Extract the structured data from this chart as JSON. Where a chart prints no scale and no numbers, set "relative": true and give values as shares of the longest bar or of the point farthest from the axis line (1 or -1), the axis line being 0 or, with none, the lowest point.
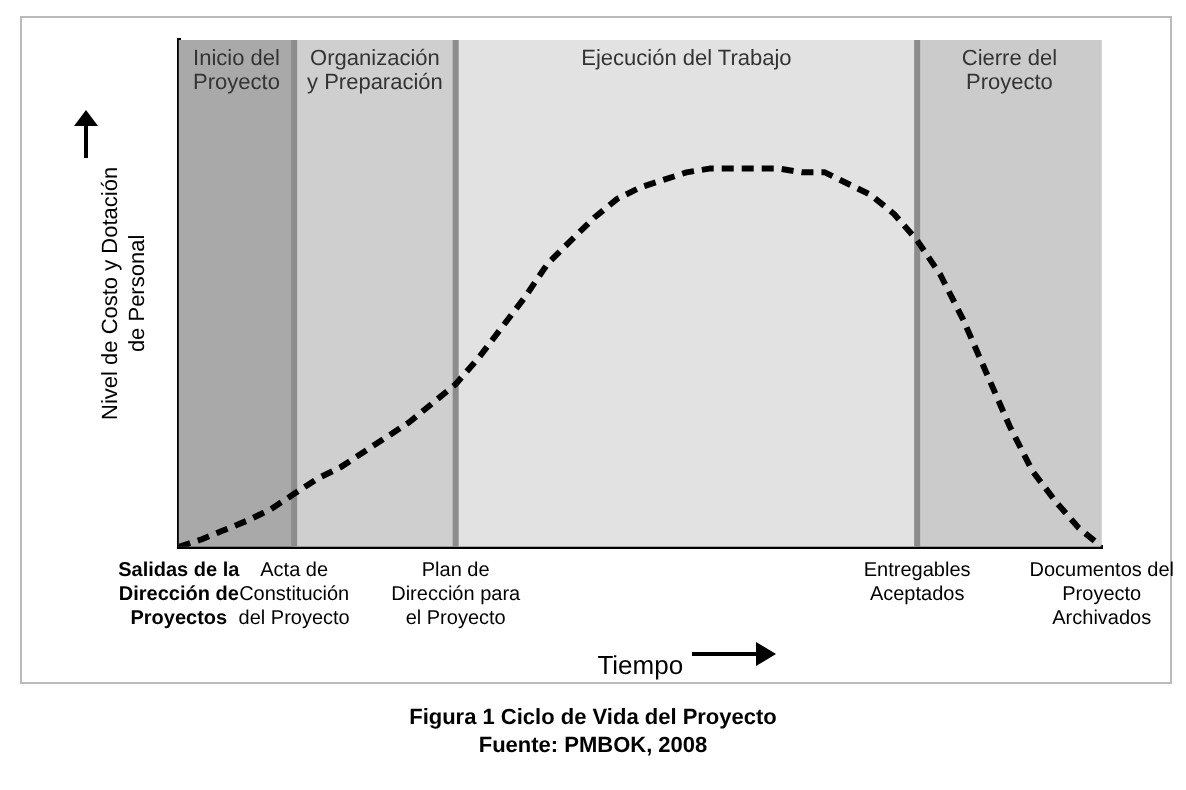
{
  "chart_data": {
    "type": "line",
    "relative": true,
    "xlabel": "Tiempo",
    "ylabel": "Nivel de Costo y Dotación de Personal",
    "title": "Figura  1 Ciclo de Vida del Proyecto",
    "subtitle": "Fuente: PMBOK, 2008",
    "categories": [
      "Salidas de la Dirección de Proyectos",
      null,
      null,
      null,
      null,
      "Acta de Constitución del Proyecto",
      null,
      null,
      null,
      null,
      null,
      null,
      "Plan de Dirección para el Proyecto",
      null,
      null,
      null,
      null,
      null,
      null,
      null,
      null,
      null,
      null,
      null,
      null,
      null,
      null,
      null,
      null,
      null,
      null,
      null,
      "Entregables Aceptados",
      null,
      null,
      null,
      null,
      null,
      null,
      null,
      "Documentos del Proyecto Archivados"
    ],
    "series": [
      {
        "color": "#000000",
        "values": [
          0,
          0.02,
          0.045,
          0.07,
          0.1,
          0.14,
          0.18,
          0.21,
          0.25,
          0.29,
          0.33,
          0.38,
          0.43,
          0.5,
          0.58,
          0.66,
          0.75,
          0.81,
          0.87,
          0.92,
          0.95,
          0.97,
          0.99,
          1,
          1,
          1,
          1,
          0.99,
          0.99,
          0.96,
          0.93,
          0.88,
          0.81,
          0.72,
          0.6,
          0.46,
          0.32,
          0.2,
          0.12,
          0.05,
          0
        ]
      }
    ],
    "bands": [
      {
        "axis": "x",
        "from": "Salidas de la Dirección de Proyectos",
        "to": "Acta de Constitución del Proyecto",
        "label": "Inicio del Proyecto",
        "color": "#a9a9a9"
      },
      {
        "axis": "x",
        "from": "Acta de Constitución del Proyecto",
        "to": "Plan de Dirección para el Proyecto",
        "label": "Organización y Preparación",
        "color": "#cfcfcf"
      },
      {
        "axis": "x",
        "from": "Plan de Dirección para el Proyecto",
        "to": "Entregables Aceptados",
        "label": "Ejecución del Trabajo",
        "color": "#e2e2e2"
      },
      {
        "axis": "x",
        "from": "Entregables Aceptados",
        "to": "Documentos del Proyecto Archivados",
        "label": "Cierre del Proyecto",
        "color": "#cbcbcb"
      }
    ],
    "ref_lines": [
      {
        "axis": "x",
        "value": "Acta de Constitución del Proyecto",
        "color": "#8c8c8c"
      },
      {
        "axis": "x",
        "value": "Plan de Dirección para el Proyecto",
        "color": "#8c8c8c"
      },
      {
        "axis": "x",
        "value": "Entregables Aceptados",
        "color": "#8c8c8c"
      }
    ],
    "grid": false,
    "legend": false,
    "marker": "none",
    "line_style": "dashed"
  }
}
